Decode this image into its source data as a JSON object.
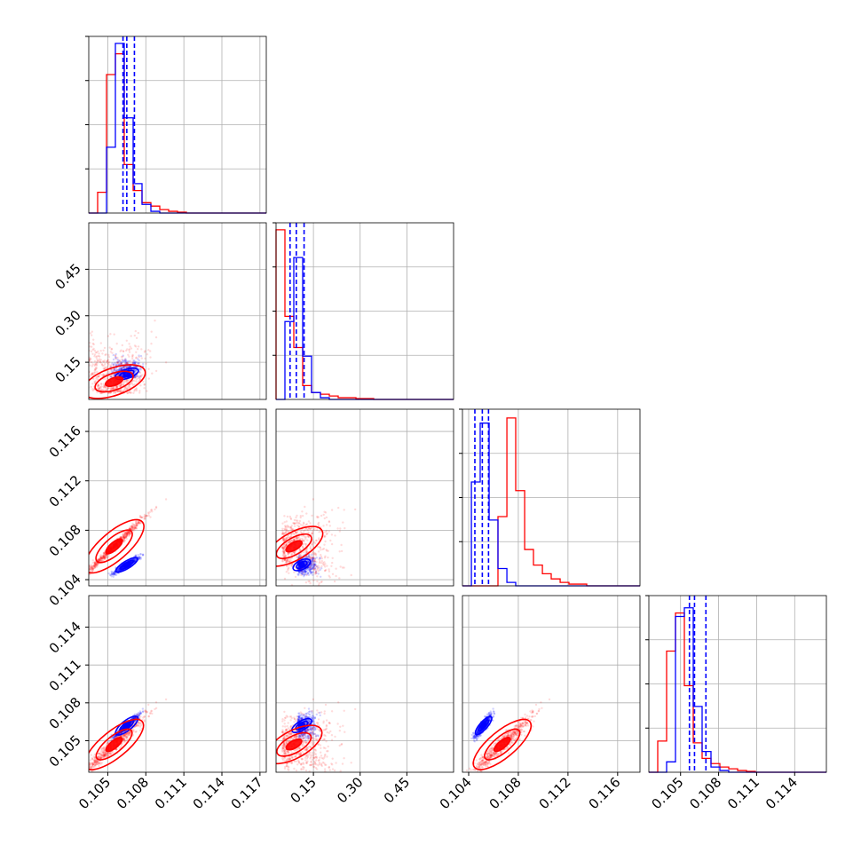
{
  "chart_data": {
    "type": "corner",
    "title": "",
    "colors": {
      "series_a": "#ff0000",
      "series_b": "#0000ff",
      "grid": "#b0b0b0"
    },
    "series": [
      {
        "id": "a",
        "color": "#ff0000"
      },
      {
        "id": "b",
        "color": "#0000ff"
      }
    ],
    "grid": true,
    "parameters": [
      {
        "index": 0,
        "range": [
          0.1035,
          0.1175
        ],
        "ticks": [
          0.105,
          0.108,
          0.111,
          0.114,
          0.117
        ],
        "tick_labels": [
          "0.105",
          "0.108",
          "0.111",
          "0.114",
          "0.117"
        ]
      },
      {
        "index": 1,
        "range": [
          0.03,
          0.6
        ],
        "ticks": [
          0.15,
          0.3,
          0.45
        ],
        "tick_labels": [
          "0.15",
          "0.30",
          "0.45"
        ]
      },
      {
        "index": 2,
        "range": [
          0.1035,
          0.1178
        ],
        "ticks": [
          0.104,
          0.108,
          0.112,
          0.116
        ],
        "tick_labels": [
          "0.104",
          "0.108",
          "0.112",
          "0.116"
        ]
      },
      {
        "index": 3,
        "range": [
          0.1025,
          0.1165
        ],
        "ticks": [
          0.105,
          0.108,
          0.111,
          0.114
        ],
        "tick_labels": [
          "0.105",
          "0.108",
          "0.111",
          "0.114"
        ]
      }
    ],
    "marginals": [
      {
        "param": 0,
        "bins": [
          0.1035,
          0.1042,
          0.1049,
          0.1056,
          0.1063,
          0.107,
          0.1077,
          0.1084,
          0.1091,
          0.1098,
          0.1105,
          0.1112,
          0.1119,
          0.1126,
          0.1133,
          0.114,
          0.1147,
          0.1154,
          0.1161,
          0.1168,
          0.1175
        ],
        "a": [
          0.0,
          0.12,
          0.8,
          0.92,
          0.28,
          0.13,
          0.06,
          0.04,
          0.02,
          0.01,
          0.005,
          0,
          0,
          0,
          0,
          0,
          0,
          0,
          0,
          0
        ],
        "b": [
          0.0,
          0.0,
          0.38,
          0.98,
          0.55,
          0.17,
          0.05,
          0.01,
          0,
          0,
          0,
          0,
          0,
          0,
          0,
          0,
          0,
          0,
          0,
          0
        ],
        "quantiles_b": [
          0.1062,
          0.1065,
          0.1071
        ]
      },
      {
        "param": 1,
        "bins": [
          0.03,
          0.0585,
          0.087,
          0.1155,
          0.144,
          0.1725,
          0.201,
          0.2295,
          0.258,
          0.2865,
          0.315,
          0.3435,
          0.372,
          0.4005,
          0.429,
          0.4575,
          0.486,
          0.5145,
          0.543,
          0.5715,
          0.6
        ],
        "a": [
          0.98,
          0.48,
          0.3,
          0.08,
          0.04,
          0.03,
          0.02,
          0.01,
          0.01,
          0.005,
          0.005,
          0,
          0,
          0,
          0,
          0,
          0,
          0,
          0,
          0
        ],
        "b": [
          0.0,
          0.45,
          0.82,
          0.25,
          0.04,
          0.01,
          0,
          0,
          0,
          0,
          0,
          0,
          0,
          0,
          0,
          0,
          0,
          0,
          0,
          0
        ],
        "quantiles_b": [
          0.075,
          0.095,
          0.12
        ]
      },
      {
        "param": 2,
        "bins": [
          0.1035,
          0.10422,
          0.10493,
          0.10565,
          0.10636,
          0.10708,
          0.10779,
          0.10851,
          0.10922,
          0.10994,
          0.11065,
          0.11137,
          0.11208,
          0.1128,
          0.11351,
          0.11423,
          0.11494,
          0.11566,
          0.11637,
          0.11709,
          0.1178
        ],
        "a": [
          0.0,
          0.0,
          0.0,
          0.0,
          0.4,
          0.97,
          0.55,
          0.21,
          0.12,
          0.07,
          0.04,
          0.02,
          0.01,
          0.01,
          0,
          0,
          0,
          0,
          0,
          0
        ],
        "b": [
          0.0,
          0.6,
          0.94,
          0.38,
          0.1,
          0.02,
          0,
          0,
          0,
          0,
          0,
          0,
          0,
          0,
          0,
          0,
          0,
          0,
          0,
          0
        ],
        "quantiles_b": [
          0.1045,
          0.1051,
          0.1056
        ]
      },
      {
        "param": 3,
        "bins": [
          0.1025,
          0.1032,
          0.1039,
          0.1046,
          0.1053,
          0.106,
          0.1067,
          0.1074,
          0.1081,
          0.1088,
          0.1095,
          0.1102,
          0.1109,
          0.1116,
          0.1123,
          0.113,
          0.1137,
          0.1144,
          0.1151,
          0.1158,
          0.1165
        ],
        "a": [
          0.0,
          0.18,
          0.7,
          0.92,
          0.5,
          0.17,
          0.08,
          0.05,
          0.03,
          0.02,
          0.01,
          0.005,
          0,
          0,
          0,
          0,
          0,
          0,
          0,
          0
        ],
        "b": [
          0.0,
          0.0,
          0.06,
          0.9,
          0.95,
          0.38,
          0.12,
          0.03,
          0.01,
          0,
          0,
          0,
          0,
          0,
          0,
          0,
          0,
          0,
          0,
          0
        ],
        "quantiles_b": [
          0.1057,
          0.1061,
          0.107
        ]
      }
    ],
    "clouds": {
      "a": {
        "mean": [
          0.1055,
          0.05,
          0.1067,
          0.1047
        ],
        "sd": [
          0.0013,
          0.075,
          0.0013,
          0.0012
        ],
        "dependence": [
          0,
          0.7,
          0.99,
          0.97
        ],
        "count": 700
      },
      "b": {
        "mean": [
          0.1065,
          0.1,
          0.1052,
          0.1062
        ],
        "sd": [
          0.0005,
          0.025,
          0.00035,
          0.00045
        ],
        "dependence": [
          0,
          0.55,
          0.92,
          0.95
        ],
        "count": 500
      }
    }
  }
}
